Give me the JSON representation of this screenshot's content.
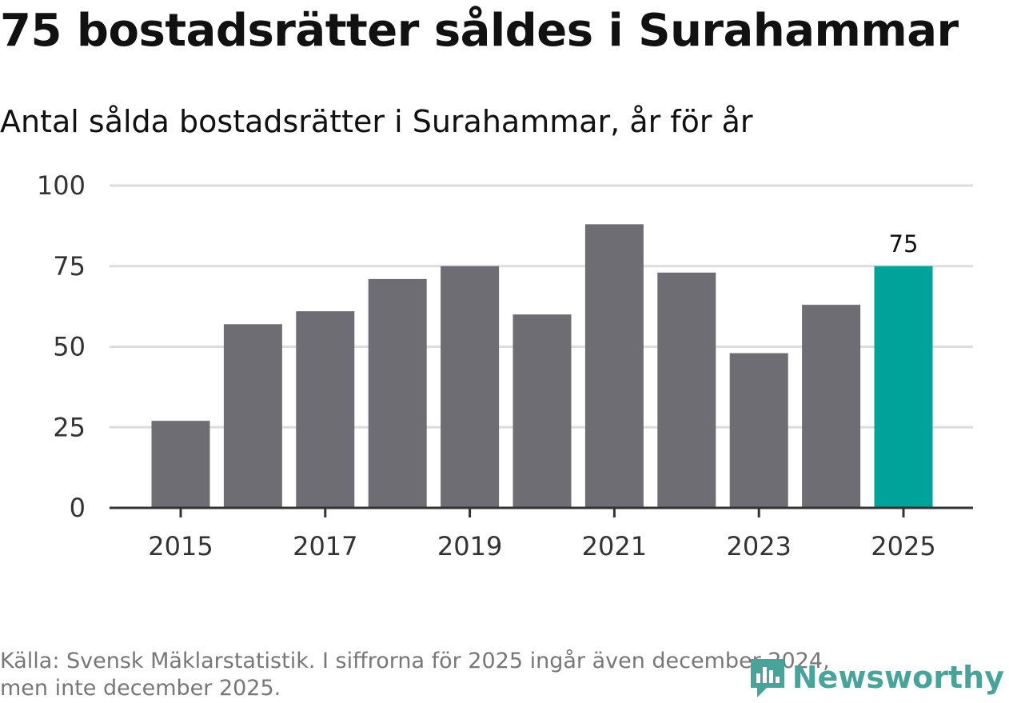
{
  "title": "75 bostadsrätter såldes i Surahammar",
  "subtitle": "Antal sålda bostadsrätter i Surahammar, år för år",
  "source_line1": "Källa: Svensk Mäklarstatistik. I siffrorna för 2025 ingår även december 2024,",
  "source_line2": "men inte december 2025.",
  "brand": "Newsworthy",
  "colors": {
    "bar": "#6e6d73",
    "highlight": "#00a39a",
    "grid": "#dddddd",
    "axis": "#333333",
    "brand": "#4aa39a"
  },
  "chart_data": {
    "type": "bar",
    "title": "Antal sålda bostadsrätter i Surahammar, år för år",
    "xlabel": "",
    "ylabel": "",
    "categories": [
      "2015",
      "2016",
      "2017",
      "2018",
      "2019",
      "2020",
      "2021",
      "2022",
      "2023",
      "2024",
      "2025"
    ],
    "values": [
      27,
      57,
      61,
      71,
      75,
      60,
      88,
      73,
      48,
      63,
      75
    ],
    "highlight_index": 10,
    "data_labels": [
      {
        "index": 10,
        "text": "75"
      }
    ],
    "x_tick_labels": [
      "2015",
      "2017",
      "2019",
      "2021",
      "2023",
      "2025"
    ],
    "y_ticks": [
      0,
      25,
      50,
      75,
      100
    ],
    "ylim": [
      0,
      100
    ],
    "grid": true
  }
}
